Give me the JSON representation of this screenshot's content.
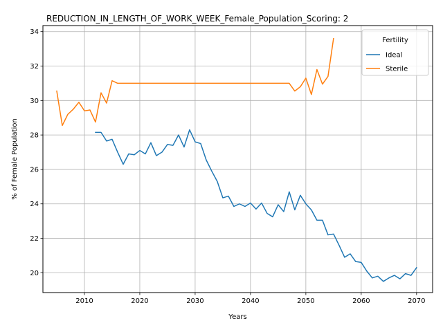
{
  "chart_data": {
    "type": "line",
    "title": "REDUCTION_IN_LENGTH_OF_WORK_WEEK_Female_Population_Scoring: 2",
    "xlabel": "Years",
    "ylabel": "% of Female Population",
    "xlim": [
      2002.5,
      2072.9
    ],
    "ylim": [
      18.85,
      34.35
    ],
    "xticks": [
      2010,
      2020,
      2030,
      2040,
      2050,
      2060,
      2070
    ],
    "yticks": [
      20,
      22,
      24,
      26,
      28,
      30,
      32,
      34
    ],
    "grid": true,
    "legend": {
      "title": "Fertility",
      "placement": "top-right"
    },
    "series": [
      {
        "name": "Ideal",
        "color": "#1f77b4",
        "x": [
          2012,
          2013,
          2014,
          2015,
          2016,
          2017,
          2018,
          2019,
          2020,
          2021,
          2022,
          2023,
          2024,
          2025,
          2026,
          2027,
          2028,
          2029,
          2030,
          2031,
          2032,
          2033,
          2034,
          2035,
          2036,
          2037,
          2038,
          2039,
          2040,
          2041,
          2042,
          2043,
          2044,
          2045,
          2046,
          2047,
          2048,
          2049,
          2050,
          2051,
          2052,
          2053,
          2054,
          2055,
          2056,
          2057,
          2058,
          2059,
          2060,
          2061,
          2062,
          2063,
          2064,
          2065,
          2066,
          2067,
          2068,
          2069,
          2070
        ],
        "y": [
          28.15,
          28.15,
          27.65,
          27.75,
          27.0,
          26.3,
          26.9,
          26.85,
          27.1,
          26.9,
          27.55,
          26.8,
          27.0,
          27.45,
          27.4,
          28.0,
          27.3,
          28.3,
          27.6,
          27.5,
          26.55,
          25.9,
          25.3,
          24.35,
          24.45,
          23.85,
          24.0,
          23.85,
          24.05,
          23.7,
          24.05,
          23.45,
          23.25,
          23.95,
          23.55,
          24.7,
          23.65,
          24.5,
          24.0,
          23.65,
          23.05,
          23.05,
          22.2,
          22.25,
          21.6,
          20.9,
          21.1,
          20.65,
          20.6,
          20.1,
          19.7,
          19.8,
          19.5,
          19.7,
          19.85,
          19.65,
          19.95,
          19.85,
          20.3
        ]
      },
      {
        "name": "Sterile",
        "color": "#ff7f0e",
        "x": [
          2005,
          2006,
          2007,
          2008,
          2009,
          2010,
          2011,
          2012,
          2013,
          2014,
          2015,
          2016,
          2017,
          2018,
          2019,
          2020,
          2021,
          2022,
          2023,
          2024,
          2025,
          2026,
          2027,
          2028,
          2029,
          2030,
          2031,
          2032,
          2033,
          2034,
          2035,
          2036,
          2037,
          2038,
          2039,
          2040,
          2041,
          2042,
          2043,
          2044,
          2045,
          2046,
          2047,
          2048,
          2049,
          2050,
          2051,
          2052,
          2053,
          2054,
          2055
        ],
        "y": [
          30.55,
          28.55,
          29.2,
          29.5,
          29.9,
          29.4,
          29.45,
          28.75,
          30.45,
          29.85,
          31.15,
          31.0,
          31.0,
          31.0,
          31.0,
          31.0,
          31.0,
          31.0,
          31.0,
          31.0,
          31.0,
          31.0,
          31.0,
          31.0,
          31.0,
          31.0,
          31.0,
          31.0,
          31.0,
          31.0,
          31.0,
          31.0,
          31.0,
          31.0,
          31.0,
          31.0,
          31.0,
          31.0,
          31.0,
          31.0,
          31.0,
          31.0,
          31.0,
          30.55,
          30.8,
          31.3,
          30.35,
          31.8,
          30.95,
          31.4,
          33.6
        ]
      }
    ]
  }
}
